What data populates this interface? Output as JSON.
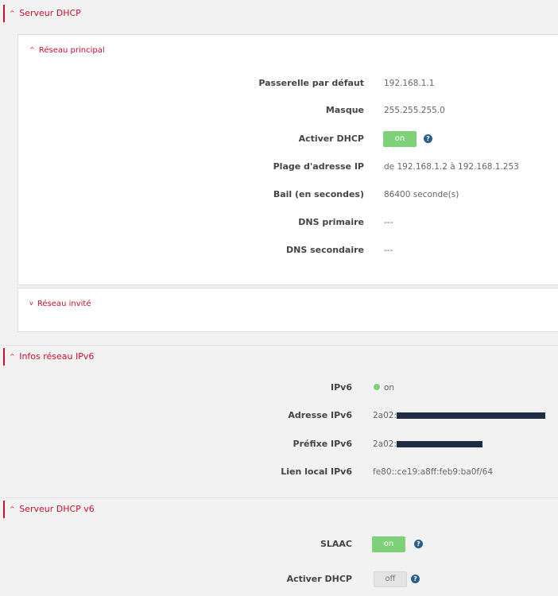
{
  "sections": {
    "dhcp": {
      "title": "Serveur DHCP"
    },
    "ipv6": {
      "title": "Infos réseau IPv6"
    },
    "dhcpv6": {
      "title": "Serveur DHCP v6"
    }
  },
  "caret_up": "^",
  "caret_down": "v",
  "main_network": {
    "title": "Réseau principal",
    "rows": [
      {
        "label": "Passerelle par défaut",
        "value": "192.168.1.1"
      },
      {
        "label": "Masque",
        "value": "255.255.255.0"
      },
      {
        "label": "Activer DHCP",
        "value": "on"
      },
      {
        "label": "Plage d'adresse IP",
        "value": "de 192.168.1.2 à 192.168.1.253"
      },
      {
        "label": "Bail (en secondes)",
        "value": "86400 seconde(s)"
      },
      {
        "label": "DNS primaire",
        "value": "---"
      },
      {
        "label": "DNS secondaire",
        "value": "---"
      }
    ]
  },
  "guest_network": {
    "title": "Réseau invité"
  },
  "ipv6_info": {
    "rows": [
      {
        "label": "IPv6",
        "value": "on"
      },
      {
        "label": "Adresse IPv6",
        "value": "2a02:"
      },
      {
        "label": "Préfixe IPv6",
        "value": "2a02:"
      },
      {
        "label": "Lien local IPv6",
        "value": "fe80::ce19:a8ff:feb9:ba0f/64"
      }
    ]
  },
  "dhcpv6_server": {
    "rows": [
      {
        "label": "SLAAC",
        "value": "on"
      },
      {
        "label": "Activer DHCP",
        "value": "off"
      }
    ]
  },
  "help_glyph": "?",
  "colors": {
    "accent": "#c8102e",
    "toggle_on": "#7ed178",
    "help": "#2c5e8a"
  }
}
